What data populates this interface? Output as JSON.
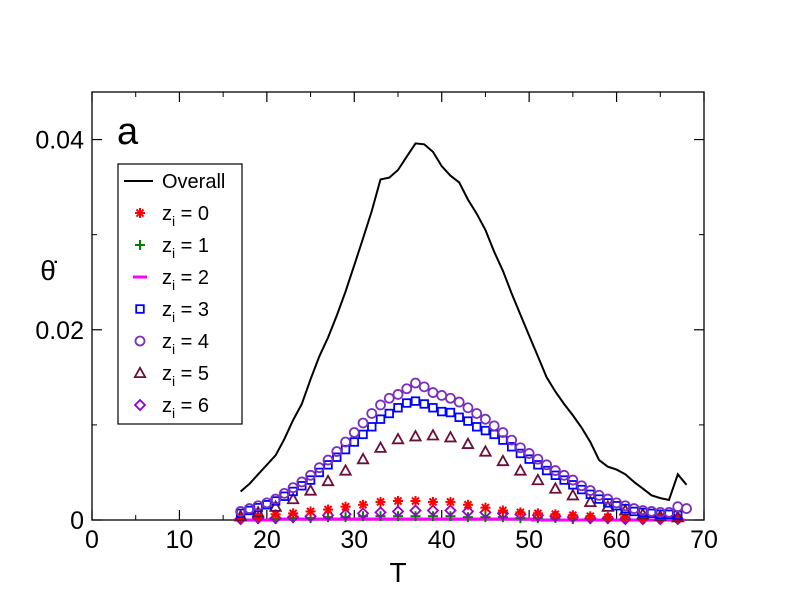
{
  "chart_data": {
    "type": "line",
    "panel_label": "a",
    "xlabel": "T",
    "ylabel": "θ̇",
    "xlim": [
      0,
      70
    ],
    "ylim": [
      0,
      0.045
    ],
    "x_ticks": [
      0,
      10,
      20,
      30,
      40,
      50,
      60,
      70
    ],
    "x_tick_labels": [
      "0",
      "10",
      "20",
      "30",
      "40",
      "50",
      "60",
      "70"
    ],
    "y_ticks": [
      0,
      0.02,
      0.04
    ],
    "y_tick_labels": [
      "0",
      "0.02",
      "0.04"
    ],
    "legend": {
      "position": "upper-left",
      "entries": [
        {
          "key": "overall",
          "sub": "",
          "rest": "Overall",
          "marker": "line",
          "color": "#000000"
        },
        {
          "key": "z0",
          "sub": "i",
          "rest": " = 0",
          "marker": "asterisk",
          "color": "#ff0000"
        },
        {
          "key": "z1",
          "sub": "i",
          "rest": " = 1",
          "marker": "plus",
          "color": "#008000"
        },
        {
          "key": "z2",
          "sub": "i",
          "rest": " = 2",
          "marker": "dash",
          "color": "#ff00ff"
        },
        {
          "key": "z3",
          "sub": "i",
          "rest": " = 3",
          "marker": "square",
          "color": "#0000ff"
        },
        {
          "key": "z4",
          "sub": "i",
          "rest": " = 4",
          "marker": "circle",
          "color": "#7b2fbe"
        },
        {
          "key": "z5",
          "sub": "i",
          "rest": " = 5",
          "marker": "triangle",
          "color": "#6b0f3a"
        },
        {
          "key": "z6",
          "sub": "i",
          "rest": " = 6",
          "marker": "diamond",
          "color": "#9400d3"
        }
      ]
    },
    "series": [
      {
        "key": "overall",
        "name": "Overall",
        "style": "line",
        "color": "#000000",
        "x": [
          17,
          18,
          19,
          20,
          21,
          22,
          23,
          24,
          25,
          26,
          27,
          28,
          29,
          30,
          31,
          32,
          33,
          34,
          35,
          36,
          37,
          38,
          39,
          40,
          41,
          42,
          43,
          44,
          45,
          46,
          47,
          48,
          49,
          50,
          51,
          52,
          53,
          54,
          55,
          56,
          57,
          58,
          59,
          60,
          61,
          62,
          63,
          64,
          65,
          66,
          67,
          68
        ],
        "y": [
          0.003,
          0.0038,
          0.0048,
          0.0058,
          0.0068,
          0.0085,
          0.0105,
          0.0122,
          0.0148,
          0.0172,
          0.0192,
          0.0215,
          0.024,
          0.0268,
          0.0296,
          0.0325,
          0.0358,
          0.036,
          0.0368,
          0.0382,
          0.0396,
          0.0395,
          0.0387,
          0.0372,
          0.0362,
          0.0355,
          0.0337,
          0.0322,
          0.0305,
          0.0282,
          0.0262,
          0.0238,
          0.0216,
          0.0194,
          0.0172,
          0.015,
          0.0135,
          0.0122,
          0.011,
          0.0097,
          0.0082,
          0.0063,
          0.0056,
          0.0053,
          0.0048,
          0.004,
          0.0033,
          0.0026,
          0.0023,
          0.0021,
          0.0048,
          0.0037
        ]
      },
      {
        "key": "z0",
        "name": "zi = 0",
        "style": "asterisk",
        "color": "#ff0000",
        "x": [
          17,
          19,
          21,
          23,
          25,
          27,
          29,
          31,
          33,
          35,
          37,
          39,
          41,
          43,
          45,
          47,
          49,
          51,
          53,
          55,
          57,
          59,
          61,
          63,
          65,
          67
        ],
        "y": [
          0.0002,
          0.0004,
          0.0006,
          0.0007,
          0.0009,
          0.0011,
          0.0014,
          0.0016,
          0.0019,
          0.002,
          0.002,
          0.0019,
          0.0019,
          0.0016,
          0.0013,
          0.001,
          0.0008,
          0.0007,
          0.0006,
          0.0005,
          0.0004,
          0.0003,
          0.0003,
          0.0002,
          0.0002,
          0.0002
        ]
      },
      {
        "key": "z1",
        "name": "zi = 1",
        "style": "plus",
        "color": "#008000",
        "x": [
          17,
          19,
          21,
          23,
          25,
          27,
          29,
          31,
          33,
          35,
          37,
          39,
          41,
          43,
          45,
          47,
          49,
          51,
          53,
          55,
          57,
          59,
          61,
          63,
          65,
          67
        ],
        "y": [
          0.0001,
          0.0001,
          0.0001,
          0.0002,
          0.0002,
          0.0003,
          0.0003,
          0.0004,
          0.0004,
          0.0004,
          0.0004,
          0.0004,
          0.0004,
          0.0003,
          0.0003,
          0.0003,
          0.0002,
          0.0002,
          0.0002,
          0.0001,
          0.0001,
          0.0001,
          0.0001,
          0.0001,
          0.0001,
          0.0001
        ]
      },
      {
        "key": "z2",
        "name": "zi = 2",
        "style": "dash",
        "color": "#ff00ff",
        "x": [
          17,
          18,
          19,
          20,
          21,
          22,
          23,
          24,
          25,
          26,
          27,
          28,
          29,
          30,
          31,
          32,
          33,
          34,
          35,
          36,
          37,
          38,
          39,
          40,
          41,
          42,
          43,
          44,
          45,
          46,
          47,
          48,
          49,
          50,
          51,
          52,
          53,
          54,
          55,
          56,
          57,
          58,
          59,
          60,
          61,
          62,
          63,
          64,
          65,
          66,
          67
        ],
        "y": [
          0.0,
          0.0,
          0.0,
          0.0,
          0.0001,
          0.0001,
          0.0001,
          0.0001,
          0.0001,
          0.0001,
          0.0001,
          0.0001,
          0.0001,
          0.0001,
          0.0001,
          0.0001,
          0.0001,
          0.0001,
          0.0001,
          0.0001,
          0.0001,
          0.0001,
          0.0001,
          0.0001,
          0.0001,
          0.0001,
          0.0001,
          0.0001,
          0.0001,
          0.0001,
          0.0001,
          0.0001,
          0.0001,
          0.0001,
          0.0,
          0.0,
          0.0,
          0.0,
          0.0,
          0.0,
          0.0,
          0.0,
          0.0,
          0.0,
          0.0,
          0.0,
          0.0,
          0.0,
          0.0,
          0.0,
          0.0
        ]
      },
      {
        "key": "z3",
        "name": "zi = 3",
        "style": "square",
        "color": "#0000ff",
        "x": [
          17,
          18,
          19,
          20,
          21,
          22,
          23,
          24,
          25,
          26,
          27,
          28,
          29,
          30,
          31,
          32,
          33,
          34,
          35,
          36,
          37,
          38,
          39,
          40,
          41,
          42,
          43,
          44,
          45,
          46,
          47,
          48,
          49,
          50,
          51,
          52,
          53,
          54,
          55,
          56,
          57,
          58,
          59,
          60,
          61,
          62,
          63,
          64,
          65,
          66,
          67
        ],
        "y": [
          0.0007,
          0.001,
          0.0013,
          0.0016,
          0.002,
          0.0025,
          0.003,
          0.0036,
          0.0042,
          0.005,
          0.0058,
          0.0066,
          0.0074,
          0.0082,
          0.009,
          0.0098,
          0.0106,
          0.0112,
          0.0118,
          0.0123,
          0.0125,
          0.0122,
          0.0118,
          0.0114,
          0.0113,
          0.0108,
          0.0104,
          0.0098,
          0.0094,
          0.009,
          0.0084,
          0.0077,
          0.007,
          0.0064,
          0.0058,
          0.0052,
          0.0047,
          0.0042,
          0.0037,
          0.0032,
          0.0027,
          0.0022,
          0.0018,
          0.0015,
          0.0012,
          0.0009,
          0.0008,
          0.0007,
          0.0006,
          0.0006,
          0.0005
        ]
      },
      {
        "key": "z4",
        "name": "zi = 4",
        "style": "circle",
        "color": "#7b2fbe",
        "x": [
          17,
          18,
          19,
          20,
          21,
          22,
          23,
          24,
          25,
          26,
          27,
          28,
          29,
          30,
          31,
          32,
          33,
          34,
          35,
          36,
          37,
          38,
          39,
          40,
          41,
          42,
          43,
          44,
          45,
          46,
          47,
          48,
          49,
          50,
          51,
          52,
          53,
          54,
          55,
          56,
          57,
          58,
          59,
          60,
          61,
          62,
          63,
          64,
          65,
          66,
          67,
          68
        ],
        "y": [
          0.0009,
          0.0012,
          0.0015,
          0.0018,
          0.0022,
          0.0028,
          0.0034,
          0.004,
          0.0047,
          0.0055,
          0.0063,
          0.0072,
          0.0082,
          0.0092,
          0.0102,
          0.0112,
          0.0121,
          0.0128,
          0.0132,
          0.0138,
          0.0144,
          0.014,
          0.0134,
          0.0131,
          0.0128,
          0.0124,
          0.0118,
          0.0112,
          0.0106,
          0.0099,
          0.0092,
          0.0084,
          0.0076,
          0.007,
          0.0064,
          0.0058,
          0.0052,
          0.0047,
          0.0042,
          0.0036,
          0.0031,
          0.0026,
          0.0022,
          0.0018,
          0.0015,
          0.0012,
          0.001,
          0.0009,
          0.0008,
          0.0008,
          0.0014,
          0.0012
        ]
      },
      {
        "key": "z5",
        "name": "zi = 5",
        "style": "triangle",
        "color": "#6b0f3a",
        "x": [
          17,
          19,
          21,
          23,
          25,
          27,
          29,
          31,
          33,
          35,
          37,
          39,
          41,
          43,
          45,
          47,
          49,
          51,
          53,
          55,
          57,
          59,
          61,
          63,
          65,
          67
        ],
        "y": [
          0.0004,
          0.0008,
          0.0014,
          0.0022,
          0.0031,
          0.0041,
          0.0052,
          0.0064,
          0.0076,
          0.0085,
          0.0088,
          0.0089,
          0.0087,
          0.008,
          0.0072,
          0.0062,
          0.0052,
          0.0042,
          0.0033,
          0.0026,
          0.0019,
          0.0014,
          0.001,
          0.0006,
          0.0004,
          0.0003
        ]
      },
      {
        "key": "z6",
        "name": "zi = 6",
        "style": "diamond",
        "color": "#9400d3",
        "x": [
          17,
          19,
          21,
          23,
          25,
          27,
          29,
          31,
          33,
          35,
          37,
          39,
          41,
          43,
          45,
          47,
          49,
          51,
          53,
          55,
          57,
          59,
          61,
          63,
          65,
          67
        ],
        "y": [
          0.0001,
          0.0002,
          0.0002,
          0.0003,
          0.0004,
          0.0005,
          0.0006,
          0.0007,
          0.0008,
          0.0009,
          0.001,
          0.001,
          0.001,
          0.0009,
          0.0008,
          0.0007,
          0.0006,
          0.0005,
          0.0004,
          0.0003,
          0.0002,
          0.0002,
          0.0001,
          0.0001,
          0.0001,
          0.0001
        ]
      }
    ]
  }
}
